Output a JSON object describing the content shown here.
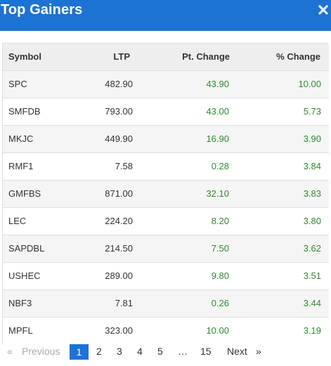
{
  "header": {
    "title": "Top Gainers"
  },
  "table": {
    "columns": [
      "Symbol",
      "LTP",
      "Pt. Change",
      "% Change"
    ],
    "rows": [
      {
        "symbol": "SPC",
        "ltp": "482.90",
        "pt": "43.90",
        "pct": "10.00"
      },
      {
        "symbol": "SMFDB",
        "ltp": "793.00",
        "pt": "43.00",
        "pct": "5.73"
      },
      {
        "symbol": "MKJC",
        "ltp": "449.90",
        "pt": "16.90",
        "pct": "3.90"
      },
      {
        "symbol": "RMF1",
        "ltp": "7.58",
        "pt": "0.28",
        "pct": "3.84"
      },
      {
        "symbol": "GMFBS",
        "ltp": "871.00",
        "pt": "32.10",
        "pct": "3.83"
      },
      {
        "symbol": "LEC",
        "ltp": "224.20",
        "pt": "8.20",
        "pct": "3.80"
      },
      {
        "symbol": "SAPDBL",
        "ltp": "214.50",
        "pt": "7.50",
        "pct": "3.62"
      },
      {
        "symbol": "USHEC",
        "ltp": "289.00",
        "pt": "9.80",
        "pct": "3.51"
      },
      {
        "symbol": "NBF3",
        "ltp": "7.81",
        "pt": "0.26",
        "pct": "3.44"
      },
      {
        "symbol": "MPFL",
        "ltp": "323.00",
        "pt": "10.00",
        "pct": "3.19"
      }
    ]
  },
  "pagination": {
    "prev_arrow": "«",
    "prev_label": "Previous",
    "pages": [
      "1",
      "2",
      "3",
      "4",
      "5",
      "…",
      "15"
    ],
    "active_page": "1",
    "next_label": "Next",
    "next_arrow": "»"
  },
  "colors": {
    "header": "#1d73d3",
    "gain": "#2e8b2e"
  }
}
